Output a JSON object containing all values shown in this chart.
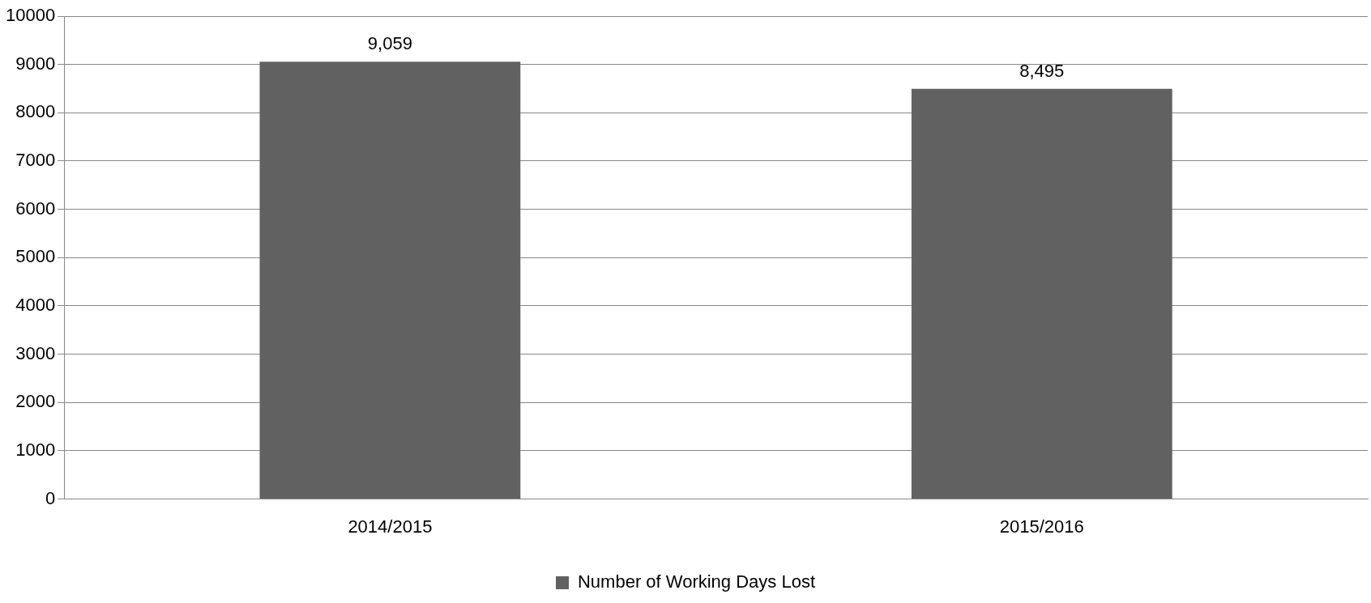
{
  "chart_data": {
    "type": "bar",
    "categories": [
      "2014/2015",
      "2015/2016"
    ],
    "series": [
      {
        "name": "Number of Working Days Lost",
        "color": "#616161",
        "values": [
          9059,
          8495
        ]
      }
    ],
    "value_labels": [
      "9,059",
      "8,495"
    ],
    "ylim": [
      0,
      10000
    ],
    "yticks": [
      0,
      1000,
      2000,
      3000,
      4000,
      5000,
      6000,
      7000,
      8000,
      9000,
      10000
    ],
    "grid": "y",
    "legend": "bottom"
  }
}
